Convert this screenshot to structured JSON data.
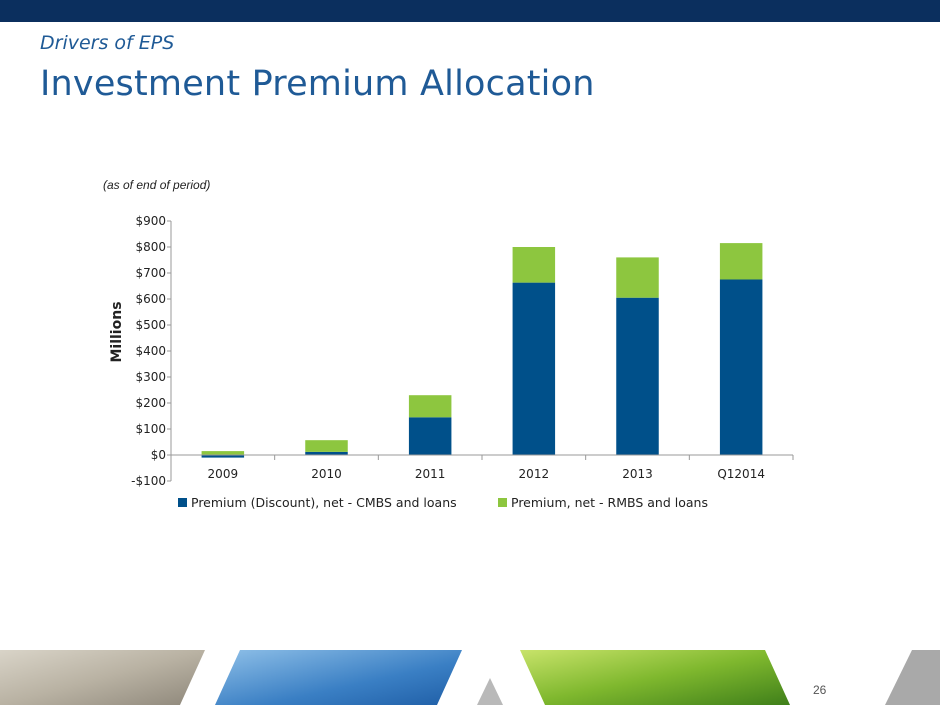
{
  "slide": {
    "subtitle": "Drivers of EPS",
    "title": "Investment Premium Allocation",
    "note": "(as of end of period)",
    "page_number": "26"
  },
  "colors": {
    "series_cmbs": "#00508a",
    "series_rmbs": "#8dc63f",
    "topbar": "#0b2f5e",
    "title": "#1f5a96"
  },
  "chart_data": {
    "type": "bar",
    "stacked": true,
    "categories": [
      "2009",
      "2010",
      "2011",
      "2012",
      "2013",
      "Q12014"
    ],
    "series": [
      {
        "name": "Premium (Discount), net - CMBS and loans",
        "values": [
          -10,
          12,
          145,
          663,
          605,
          675
        ]
      },
      {
        "name": "Premium, net - RMBS and loans",
        "values": [
          15,
          45,
          85,
          137,
          155,
          140
        ]
      }
    ],
    "ylabel": "Millions",
    "ylim": [
      -100,
      900
    ],
    "yticks": [
      -100,
      0,
      100,
      200,
      300,
      400,
      500,
      600,
      700,
      800,
      900
    ],
    "ytick_labels": [
      "-$100",
      "$0",
      "$100",
      "$200",
      "$300",
      "$400",
      "$500",
      "$600",
      "$700",
      "$800",
      "$900"
    ],
    "legend_position": "bottom",
    "grid": false
  }
}
